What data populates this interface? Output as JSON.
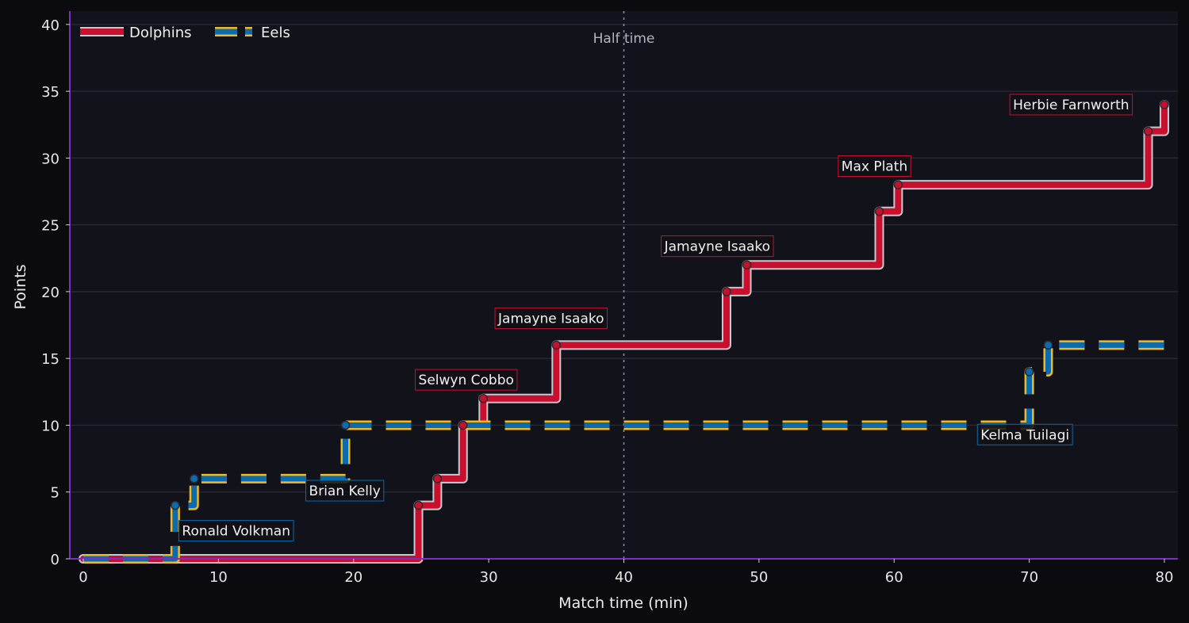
{
  "chart_data": {
    "type": "line",
    "step": "post",
    "xlabel": "Match time (min)",
    "ylabel": "Points",
    "xlim": [
      -1,
      81
    ],
    "ylim": [
      0,
      41
    ],
    "x_ticks": [
      0,
      10,
      20,
      30,
      40,
      50,
      60,
      70,
      80
    ],
    "y_ticks": [
      0,
      5,
      10,
      15,
      20,
      25,
      30,
      35,
      40
    ],
    "grid": "horizontal",
    "legend_position": "top-left",
    "background": "#12121a",
    "half_time": {
      "x": 40,
      "label": "Half time"
    },
    "series": [
      {
        "name": "Dolphins",
        "color": "#c8102e",
        "outline": "#c8c8d0",
        "style": "solid",
        "x": [
          0,
          24.8,
          26.2,
          28.1,
          29.6,
          35.0,
          47.6,
          49.1,
          58.9,
          60.3,
          78.8,
          80.0
        ],
        "y": [
          0,
          4,
          6,
          10,
          12,
          16,
          20,
          22,
          26,
          28,
          32,
          34
        ],
        "end_x": 80
      },
      {
        "name": "Eels",
        "color": "#0a6bb0",
        "outline": "#f2b81e",
        "style": "dashed",
        "x": [
          0,
          6.8,
          8.2,
          19.4,
          70.0,
          71.4
        ],
        "y": [
          0,
          4,
          6,
          10,
          14,
          16
        ],
        "end_x": 80
      }
    ],
    "annotations": [
      {
        "text": "Ronald Volkman",
        "series": "Eels",
        "x": 7.3,
        "y": 2.1
      },
      {
        "text": "Brian Kelly",
        "series": "Eels",
        "x": 16.7,
        "y": 5.1
      },
      {
        "text": "Kelma Tuilagi",
        "series": "Eels",
        "x": 66.4,
        "y": 9.3
      },
      {
        "text": "Selwyn Cobbo",
        "series": "Dolphins",
        "x": 24.8,
        "y": 13.4
      },
      {
        "text": "Jamayne Isaako",
        "series": "Dolphins",
        "x": 30.7,
        "y": 18.0
      },
      {
        "text": "Jamayne Isaako",
        "series": "Dolphins",
        "x": 43.0,
        "y": 23.4
      },
      {
        "text": "Max Plath",
        "series": "Dolphins",
        "x": 56.1,
        "y": 29.4
      },
      {
        "text": "Herbie Farnworth",
        "series": "Dolphins",
        "x": 68.8,
        "y": 34.0
      }
    ]
  }
}
